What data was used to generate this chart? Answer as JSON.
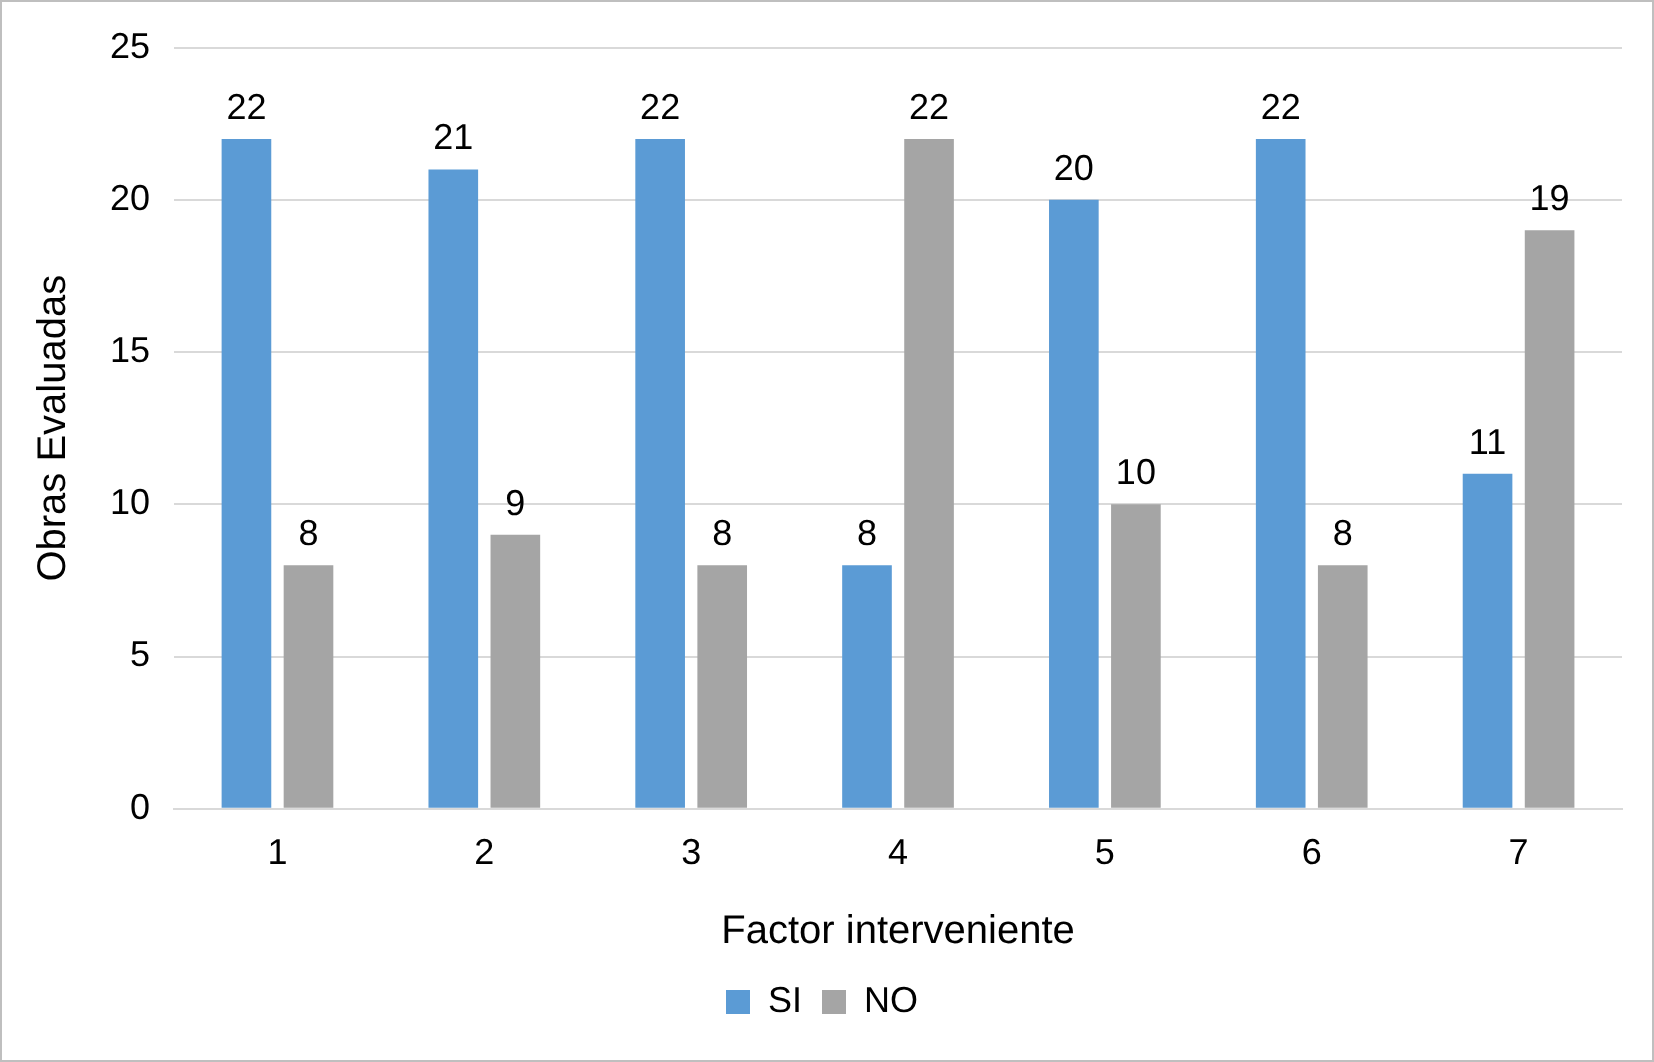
{
  "chart_data": {
    "type": "bar",
    "xlabel": "Factor interveniente",
    "ylabel": "Obras Evaluadas",
    "categories": [
      "1",
      "2",
      "3",
      "4",
      "5",
      "6",
      "7"
    ],
    "series": [
      {
        "name": "SI",
        "color": "#5b9bd5",
        "values": [
          22,
          21,
          22,
          8,
          20,
          22,
          11
        ]
      },
      {
        "name": "NO",
        "color": "#a5a5a5",
        "values": [
          8,
          9,
          8,
          22,
          10,
          8,
          19
        ]
      }
    ],
    "ylim": [
      0,
      25
    ],
    "yticks": [
      0,
      5,
      10,
      15,
      20,
      25
    ],
    "grid": "y",
    "legend": "bottom",
    "data_labels": true
  }
}
